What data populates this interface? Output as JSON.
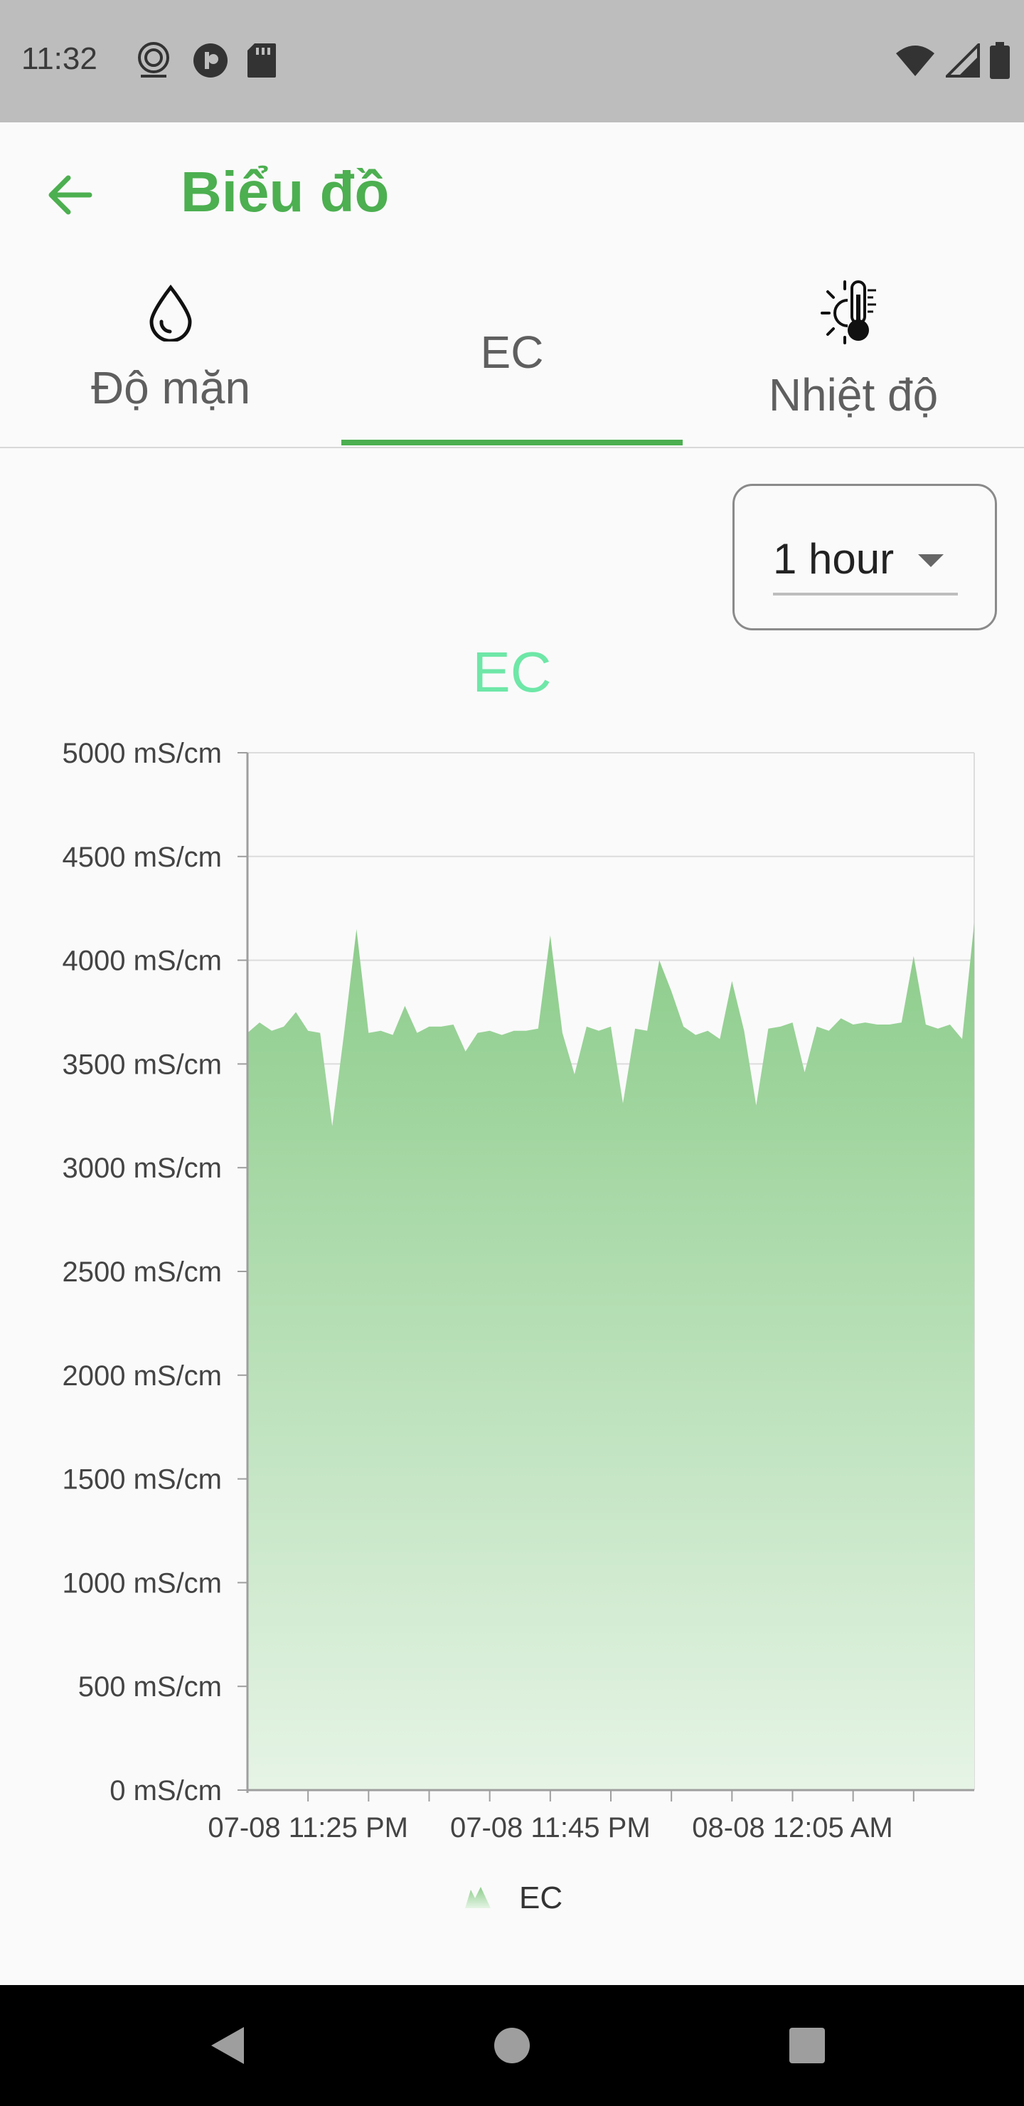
{
  "status_bar": {
    "time": "11:32",
    "left_icons": [
      "app-logo-icon",
      "notification-icon",
      "sd-card-icon"
    ],
    "right_icons": [
      "wifi-icon",
      "signal-icon",
      "battery-icon"
    ]
  },
  "app_bar": {
    "title": "Biểu đồ",
    "back_icon": "arrow-left-icon"
  },
  "tabs": [
    {
      "label": "Độ mặn",
      "icon": "water-drop-icon",
      "selected": false
    },
    {
      "label": "EC",
      "icon": "",
      "selected": true
    },
    {
      "label": "Nhiệt độ",
      "icon": "thermometer-sun-icon",
      "selected": false
    }
  ],
  "period_select": {
    "value": "1 hour"
  },
  "colors": {
    "accent": "#4caf50",
    "chart_fill": "#8ccc8a",
    "chart_title": "#6ee7a7"
  },
  "chart_data": {
    "type": "area",
    "title": "EC",
    "legend": {
      "label": "EC",
      "placement": "bottom-center"
    },
    "ylim": [
      0,
      5000
    ],
    "y_ticks": [
      "0 mS/cm",
      "500 mS/cm",
      "1000 mS/cm",
      "1500 mS/cm",
      "2000 mS/cm",
      "2500 mS/cm",
      "3000 mS/cm",
      "3500 mS/cm",
      "4000 mS/cm",
      "4500 mS/cm",
      "5000 mS/cm"
    ],
    "x_tick_labels": [
      "07-08 11:25 PM",
      "07-08 11:45 PM",
      "08-08 12:05 AM"
    ],
    "x_range_minutes": [
      -5,
      55
    ],
    "grid": true,
    "series": [
      {
        "name": "EC",
        "x": [
          -5,
          -4,
          -3,
          -2,
          -1,
          0,
          1,
          2,
          3,
          4,
          5,
          6,
          7,
          8,
          9,
          10,
          11,
          12,
          13,
          14,
          15,
          16,
          17,
          18,
          19,
          20,
          21,
          22,
          23,
          24,
          25,
          26,
          27,
          28,
          29,
          30,
          31,
          32,
          33,
          34,
          35,
          36,
          37,
          38,
          39,
          40,
          41,
          42,
          43,
          44,
          45,
          46,
          47,
          48,
          49,
          50,
          51,
          52,
          53,
          54,
          55
        ],
        "values": [
          3650,
          3700,
          3660,
          3680,
          3750,
          3660,
          3650,
          3200,
          3660,
          4150,
          3650,
          3660,
          3640,
          3780,
          3650,
          3680,
          3680,
          3690,
          3560,
          3650,
          3660,
          3640,
          3660,
          3660,
          3670,
          4120,
          3650,
          3450,
          3680,
          3660,
          3680,
          3310,
          3670,
          3660,
          4000,
          3850,
          3680,
          3640,
          3660,
          3620,
          3900,
          3660,
          3300,
          3670,
          3680,
          3700,
          3460,
          3680,
          3660,
          3720,
          3690,
          3700,
          3690,
          3690,
          3700,
          4020,
          3690,
          3670,
          3690,
          3620,
          4180
        ]
      }
    ]
  },
  "nav_bar": {
    "buttons": [
      "back-triangle-icon",
      "home-circle-icon",
      "recents-square-icon"
    ]
  }
}
